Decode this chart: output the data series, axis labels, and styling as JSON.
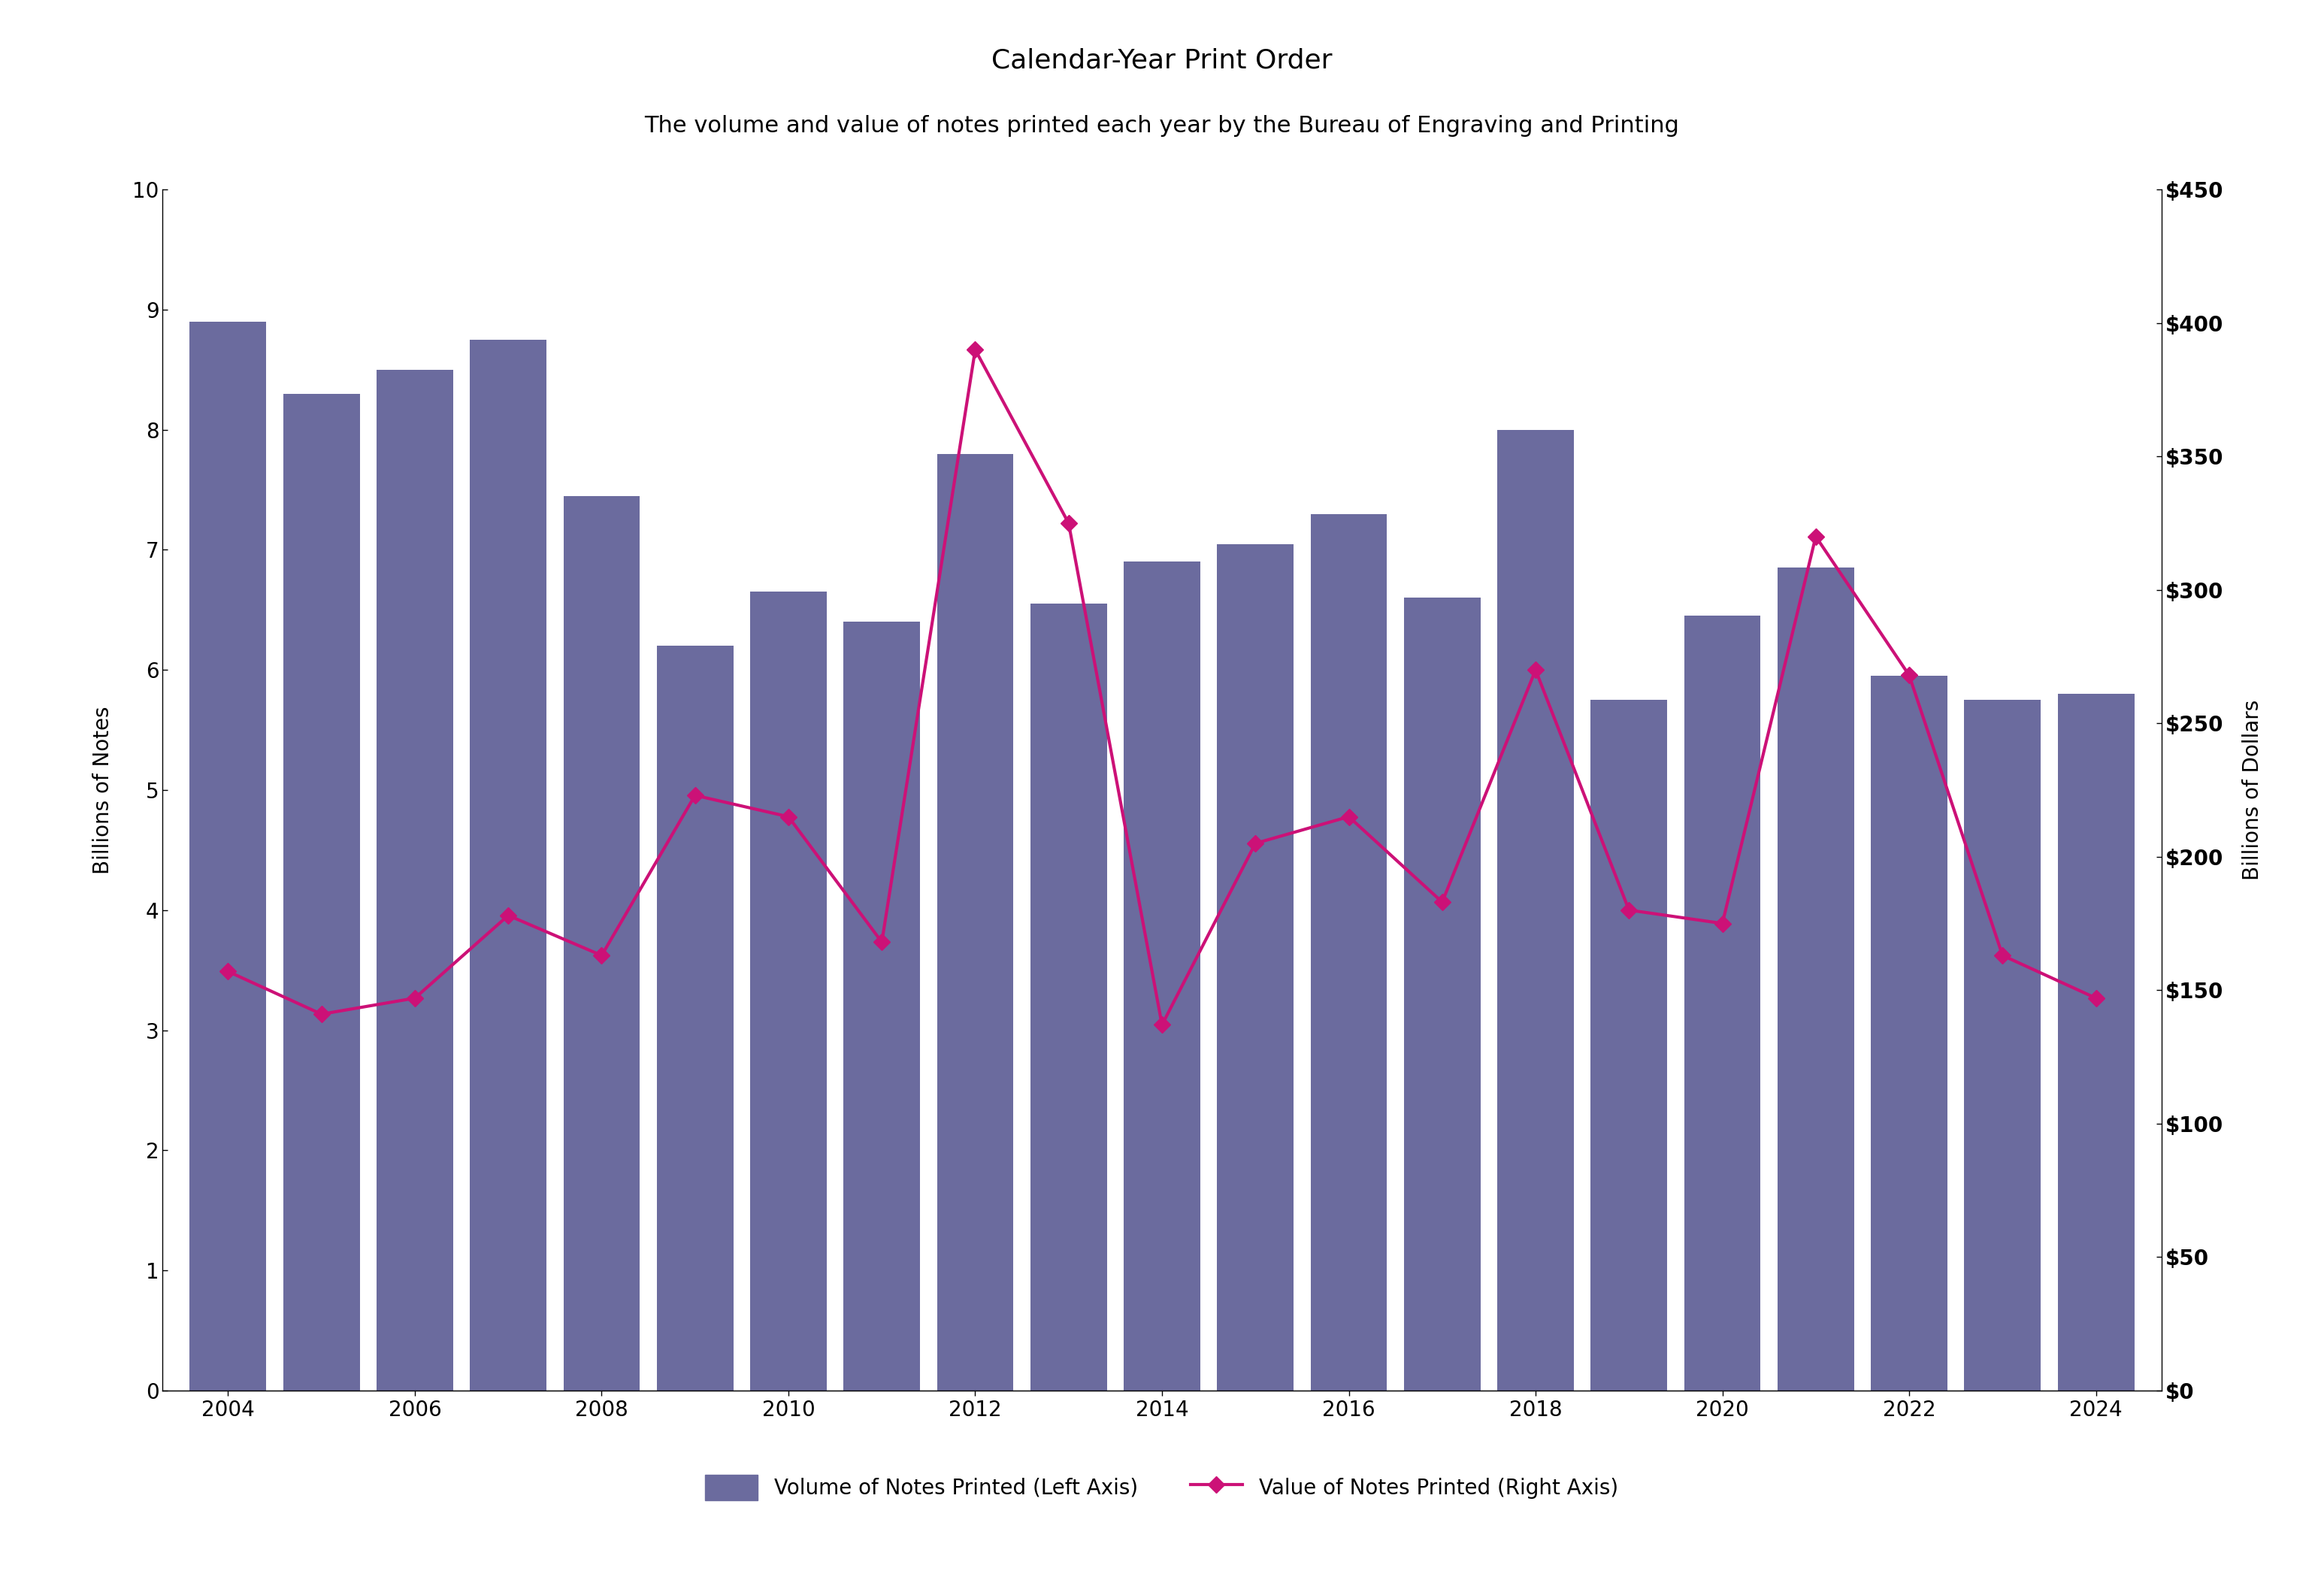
{
  "title_line1": "Calendar-Year Print Order",
  "title_line2": "The volume and value of notes printed each year by the Bureau of Engraving and Printing",
  "years": [
    2004,
    2005,
    2006,
    2007,
    2008,
    2009,
    2010,
    2011,
    2012,
    2013,
    2014,
    2015,
    2016,
    2017,
    2018,
    2019,
    2020,
    2021,
    2022,
    2023,
    2024
  ],
  "volume": [
    8.9,
    8.3,
    8.5,
    8.75,
    7.45,
    6.2,
    6.65,
    6.4,
    7.8,
    6.55,
    6.9,
    7.05,
    7.3,
    6.6,
    8.0,
    5.75,
    6.45,
    6.85,
    5.95,
    5.75,
    5.8
  ],
  "value": [
    157,
    141,
    147,
    178,
    163,
    223,
    215,
    168,
    390,
    325,
    137,
    205,
    215,
    183,
    270,
    180,
    175,
    320,
    268,
    163,
    147
  ],
  "bar_color": "#6B6B9E",
  "line_color": "#CC1177",
  "ylabel_left": "Billions of Notes",
  "ylabel_right": "Billions of Dollars",
  "ylim_left": [
    0,
    10
  ],
  "ylim_right": [
    0,
    450
  ],
  "yticks_left": [
    0,
    1,
    2,
    3,
    4,
    5,
    6,
    7,
    8,
    9,
    10
  ],
  "yticks_right": [
    0,
    50,
    100,
    150,
    200,
    250,
    300,
    350,
    400,
    450
  ],
  "ytick_labels_right": [
    "$0",
    "$50",
    "$100",
    "$150",
    "$200",
    "$250",
    "$300",
    "$350",
    "$400",
    "$450"
  ],
  "legend_bar_label": "Volume of Notes Printed (Left Axis)",
  "legend_line_label": "Value of Notes Printed (Right Axis)",
  "background_color": "#FFFFFF",
  "title_fontsize": 26,
  "subtitle_fontsize": 22,
  "axis_label_fontsize": 20,
  "tick_fontsize": 20,
  "legend_fontsize": 20
}
